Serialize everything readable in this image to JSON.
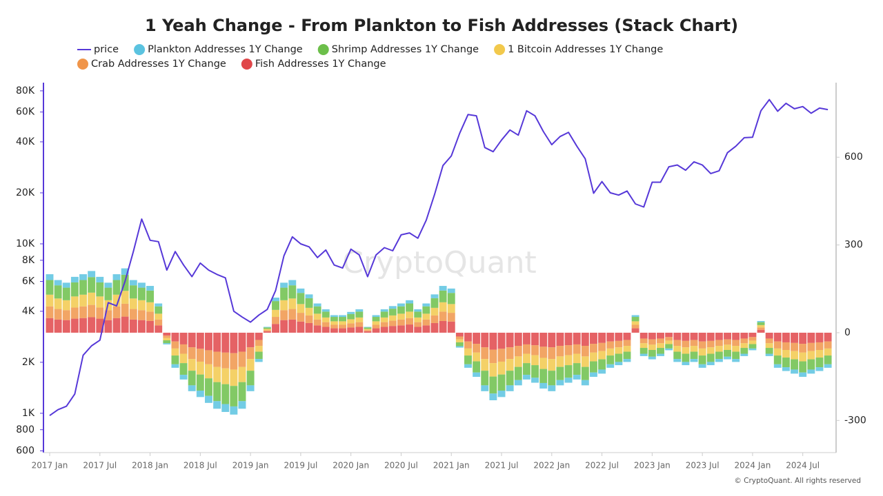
{
  "chart_data": {
    "type": "stacked-bar-line",
    "title": "1 Yeah Change - From Plankton to Fish Addresses (Stack Chart)",
    "watermark": "CryptoQuant",
    "footer": "© CryptoQuant. All rights reserved",
    "x": [
      "2017-01",
      "2017-02",
      "2017-03",
      "2017-04",
      "2017-05",
      "2017-06",
      "2017-07",
      "2017-08",
      "2017-09",
      "2017-10",
      "2017-11",
      "2017-12",
      "2018-01",
      "2018-02",
      "2018-03",
      "2018-04",
      "2018-05",
      "2018-06",
      "2018-07",
      "2018-08",
      "2018-09",
      "2018-10",
      "2018-11",
      "2018-12",
      "2019-01",
      "2019-02",
      "2019-03",
      "2019-04",
      "2019-05",
      "2019-06",
      "2019-07",
      "2019-08",
      "2019-09",
      "2019-10",
      "2019-11",
      "2019-12",
      "2020-01",
      "2020-02",
      "2020-03",
      "2020-04",
      "2020-05",
      "2020-06",
      "2020-07",
      "2020-08",
      "2020-09",
      "2020-10",
      "2020-11",
      "2020-12",
      "2021-01",
      "2021-02",
      "2021-03",
      "2021-04",
      "2021-05",
      "2021-06",
      "2021-07",
      "2021-08",
      "2021-09",
      "2021-10",
      "2021-11",
      "2021-12",
      "2022-01",
      "2022-02",
      "2022-03",
      "2022-04",
      "2022-05",
      "2022-06",
      "2022-07",
      "2022-08",
      "2022-09",
      "2022-10",
      "2022-11",
      "2022-12",
      "2023-01",
      "2023-02",
      "2023-03",
      "2023-04",
      "2023-05",
      "2023-06",
      "2023-07",
      "2023-08",
      "2023-09",
      "2023-10",
      "2023-11",
      "2023-12",
      "2024-01",
      "2024-02",
      "2024-03",
      "2024-04",
      "2024-05",
      "2024-06",
      "2024-07",
      "2024-08",
      "2024-09",
      "2024-10"
    ],
    "series": [
      {
        "name": "price",
        "color": "#5638d8",
        "axis": "y",
        "values": [
          970,
          1050,
          1100,
          1300,
          2200,
          2500,
          2700,
          4500,
          4300,
          6000,
          9000,
          14000,
          10500,
          10300,
          7000,
          9000,
          7500,
          6400,
          7700,
          7000,
          6600,
          6300,
          4000,
          3700,
          3450,
          3800,
          4100,
          5300,
          8500,
          11000,
          10000,
          9600,
          8300,
          9200,
          7500,
          7200,
          9300,
          8600,
          6400,
          8600,
          9500,
          9100,
          11300,
          11600,
          10800,
          13800,
          19600,
          29000,
          33000,
          45000,
          58000,
          57000,
          37000,
          35000,
          41000,
          47000,
          43800,
          61000,
          57000,
          46000,
          38500,
          43000,
          45500,
          37700,
          31800,
          19900,
          23300,
          20000,
          19400,
          20500,
          17200,
          16500,
          23100,
          23100,
          28500,
          29200,
          27200,
          30500,
          29200,
          26000,
          27000,
          34500,
          37700,
          42300,
          42600,
          61000,
          71000,
          60600,
          67500,
          62700,
          64600,
          59000,
          63300,
          62000
        ]
      },
      {
        "name": "Plankton Addresses 1Y Change",
        "color": "#5bc3e0",
        "axis": "y2",
        "values": [
          20,
          18,
          17,
          19,
          20,
          21,
          19,
          17,
          20,
          22,
          18,
          17,
          16,
          10,
          -4,
          -12,
          -16,
          -20,
          -22,
          -24,
          -26,
          -27,
          -28,
          -26,
          -20,
          -10,
          2,
          12,
          17,
          18,
          15,
          13,
          10,
          8,
          6,
          6,
          7,
          8,
          2,
          6,
          8,
          9,
          10,
          11,
          8,
          10,
          13,
          16,
          15,
          -5,
          -12,
          -15,
          -20,
          -23,
          -22,
          -20,
          -18,
          -16,
          -17,
          -19,
          -20,
          -18,
          -17,
          -16,
          -18,
          -15,
          -14,
          -12,
          -11,
          -10,
          6,
          -8,
          -9,
          -8,
          -6,
          -10,
          -11,
          -10,
          -12,
          -11,
          -10,
          -9,
          -10,
          -8,
          -6,
          4,
          -8,
          -12,
          -13,
          -14,
          -15,
          -14,
          -13,
          -12
        ]
      },
      {
        "name": "Shrimp Addresses 1Y Change",
        "color": "#6cbf4a",
        "axis": "y2",
        "values": [
          50,
          45,
          43,
          48,
          50,
          53,
          48,
          43,
          50,
          55,
          45,
          43,
          40,
          25,
          -10,
          -30,
          -40,
          -50,
          -55,
          -60,
          -65,
          -68,
          -70,
          -65,
          -50,
          -25,
          5,
          30,
          43,
          45,
          38,
          33,
          25,
          20,
          15,
          15,
          18,
          20,
          5,
          15,
          20,
          23,
          25,
          28,
          20,
          25,
          33,
          40,
          38,
          -13,
          -30,
          -38,
          -50,
          -58,
          -55,
          -50,
          -45,
          -40,
          -43,
          -48,
          -50,
          -45,
          -43,
          -40,
          -45,
          -38,
          -35,
          -30,
          -28,
          -25,
          15,
          -20,
          -23,
          -20,
          -15,
          -25,
          -28,
          -25,
          -30,
          -28,
          -25,
          -23,
          -25,
          -20,
          -15,
          10,
          -20,
          -30,
          -33,
          -35,
          -38,
          -35,
          -33,
          -30
        ]
      },
      {
        "name": "1 Bitcoin Addresses 1Y Change",
        "color": "#f2c94c",
        "axis": "y2",
        "values": [
          40,
          36,
          34,
          38,
          40,
          42,
          38,
          34,
          40,
          44,
          36,
          34,
          32,
          20,
          -8,
          -24,
          -32,
          -40,
          -44,
          -48,
          -52,
          -54,
          -56,
          -52,
          -40,
          -20,
          4,
          24,
          34,
          36,
          30,
          26,
          20,
          16,
          12,
          12,
          14,
          16,
          4,
          12,
          16,
          18,
          20,
          22,
          16,
          20,
          26,
          32,
          30,
          -10,
          -24,
          -30,
          -40,
          -46,
          -44,
          -40,
          -36,
          -32,
          -34,
          -38,
          -40,
          -36,
          -34,
          -32,
          -36,
          -30,
          -28,
          -24,
          -22,
          -20,
          12,
          -16,
          -18,
          -16,
          -12,
          -20,
          -22,
          -20,
          -24,
          -22,
          -20,
          -18,
          -20,
          -16,
          -12,
          8,
          -16,
          -24,
          -26,
          -28,
          -30,
          -28,
          -26,
          -24
        ]
      },
      {
        "name": "Crab Addresses 1Y Change",
        "color": "#f0954a",
        "axis": "y2",
        "values": [
          40,
          36,
          34,
          38,
          40,
          42,
          38,
          34,
          40,
          44,
          36,
          34,
          32,
          20,
          -8,
          -24,
          -32,
          -40,
          -44,
          -48,
          -52,
          -54,
          -56,
          -52,
          -40,
          -20,
          4,
          24,
          34,
          36,
          30,
          26,
          20,
          16,
          12,
          12,
          14,
          16,
          4,
          12,
          16,
          18,
          20,
          22,
          16,
          20,
          26,
          32,
          30,
          -10,
          -24,
          -30,
          -40,
          -46,
          -44,
          -40,
          -36,
          -32,
          -34,
          -38,
          -40,
          -36,
          -34,
          -32,
          -36,
          -30,
          -28,
          -24,
          -22,
          -20,
          12,
          -16,
          -18,
          -16,
          -12,
          -20,
          -22,
          -20,
          -24,
          -22,
          -20,
          -18,
          -20,
          -16,
          -12,
          8,
          -16,
          -24,
          -26,
          -28,
          -30,
          -28,
          -26,
          -24
        ]
      },
      {
        "name": "Fish Addresses 1Y Change",
        "color": "#e0474a",
        "axis": "y2",
        "values": [
          50,
          45,
          43,
          48,
          50,
          53,
          48,
          43,
          50,
          55,
          45,
          43,
          40,
          25,
          -10,
          -30,
          -40,
          -50,
          -55,
          -60,
          -65,
          -68,
          -70,
          -65,
          -50,
          -25,
          5,
          30,
          43,
          45,
          38,
          33,
          25,
          20,
          15,
          15,
          18,
          20,
          5,
          15,
          20,
          23,
          25,
          28,
          20,
          25,
          33,
          40,
          38,
          -13,
          -30,
          -38,
          -50,
          -58,
          -55,
          -50,
          -45,
          -40,
          -43,
          -48,
          -50,
          -45,
          -43,
          -40,
          -45,
          -38,
          -35,
          -30,
          -28,
          -25,
          15,
          -20,
          -23,
          -20,
          -15,
          -25,
          -28,
          -25,
          -30,
          -28,
          -25,
          -23,
          -25,
          -20,
          -15,
          10,
          -20,
          -30,
          -33,
          -35,
          -38,
          -35,
          -33,
          -30
        ]
      }
    ],
    "log_y": true,
    "ylim": [
      586,
      89400
    ],
    "yticks": [
      {
        "value": 600,
        "label": "600"
      },
      {
        "value": 800,
        "label": "800"
      },
      {
        "value": 1000,
        "label": "1K"
      },
      {
        "value": 2000,
        "label": "2K"
      },
      {
        "value": 4000,
        "label": "4K"
      },
      {
        "value": 6000,
        "label": "6K"
      },
      {
        "value": 8000,
        "label": "8K"
      },
      {
        "value": 10000,
        "label": "10K"
      },
      {
        "value": 20000,
        "label": "20K"
      },
      {
        "value": 40000,
        "label": "40K"
      },
      {
        "value": 60000,
        "label": "60K"
      },
      {
        "value": 80000,
        "label": "80K"
      }
    ],
    "y2lim": [
      -410,
      855
    ],
    "y2ticks": [
      -300,
      0,
      300,
      600
    ],
    "xticks": [
      {
        "value": "2017-01",
        "label": "2017 Jan"
      },
      {
        "value": "2017-07",
        "label": "2017 Jul"
      },
      {
        "value": "2018-01",
        "label": "2018 Jan"
      },
      {
        "value": "2018-07",
        "label": "2018 Jul"
      },
      {
        "value": "2019-01",
        "label": "2019 Jan"
      },
      {
        "value": "2019-07",
        "label": "2019 Jul"
      },
      {
        "value": "2020-01",
        "label": "2020 Jan"
      },
      {
        "value": "2020-07",
        "label": "2020 Jul"
      },
      {
        "value": "2021-01",
        "label": "2021 Jan"
      },
      {
        "value": "2021-07",
        "label": "2021 Jul"
      },
      {
        "value": "2022-01",
        "label": "2022 Jan"
      },
      {
        "value": "2022-07",
        "label": "2022 Jul"
      },
      {
        "value": "2023-01",
        "label": "2023 Jan"
      },
      {
        "value": "2023-07",
        "label": "2023 Jul"
      },
      {
        "value": "2024-01",
        "label": "2024 Jan"
      },
      {
        "value": "2024-07",
        "label": "2024 Jul"
      }
    ]
  }
}
